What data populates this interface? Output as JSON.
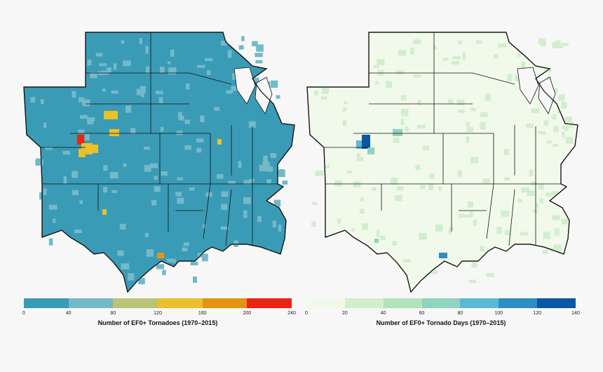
{
  "maps": [
    {
      "legend_title": "Number of EF0+ Tornadoes (1970–2015)",
      "ticks": [
        "0",
        "40",
        "80",
        "120",
        "160",
        "200",
        "240"
      ],
      "bins": [
        "#3a9bb6",
        "#74b9c8",
        "#b9c476",
        "#eac12a",
        "#e39412",
        "#ee2212"
      ],
      "base_color": "#3a9bb6",
      "secondary_color": "#74b9c8"
    },
    {
      "legend_title": "Number of EF0+ Tornado Days (1970–2015)",
      "ticks": [
        "0",
        "20",
        "40",
        "60",
        "80",
        "100",
        "120",
        "140"
      ],
      "bins": [
        "#f1f9ea",
        "#d2eecd",
        "#b1e2ba",
        "#8fd3c0",
        "#5bb9d4",
        "#2e8ec4",
        "#0a57a3"
      ],
      "base_color": "#f1f9ea",
      "secondary_color": "#d2eecd"
    }
  ]
}
